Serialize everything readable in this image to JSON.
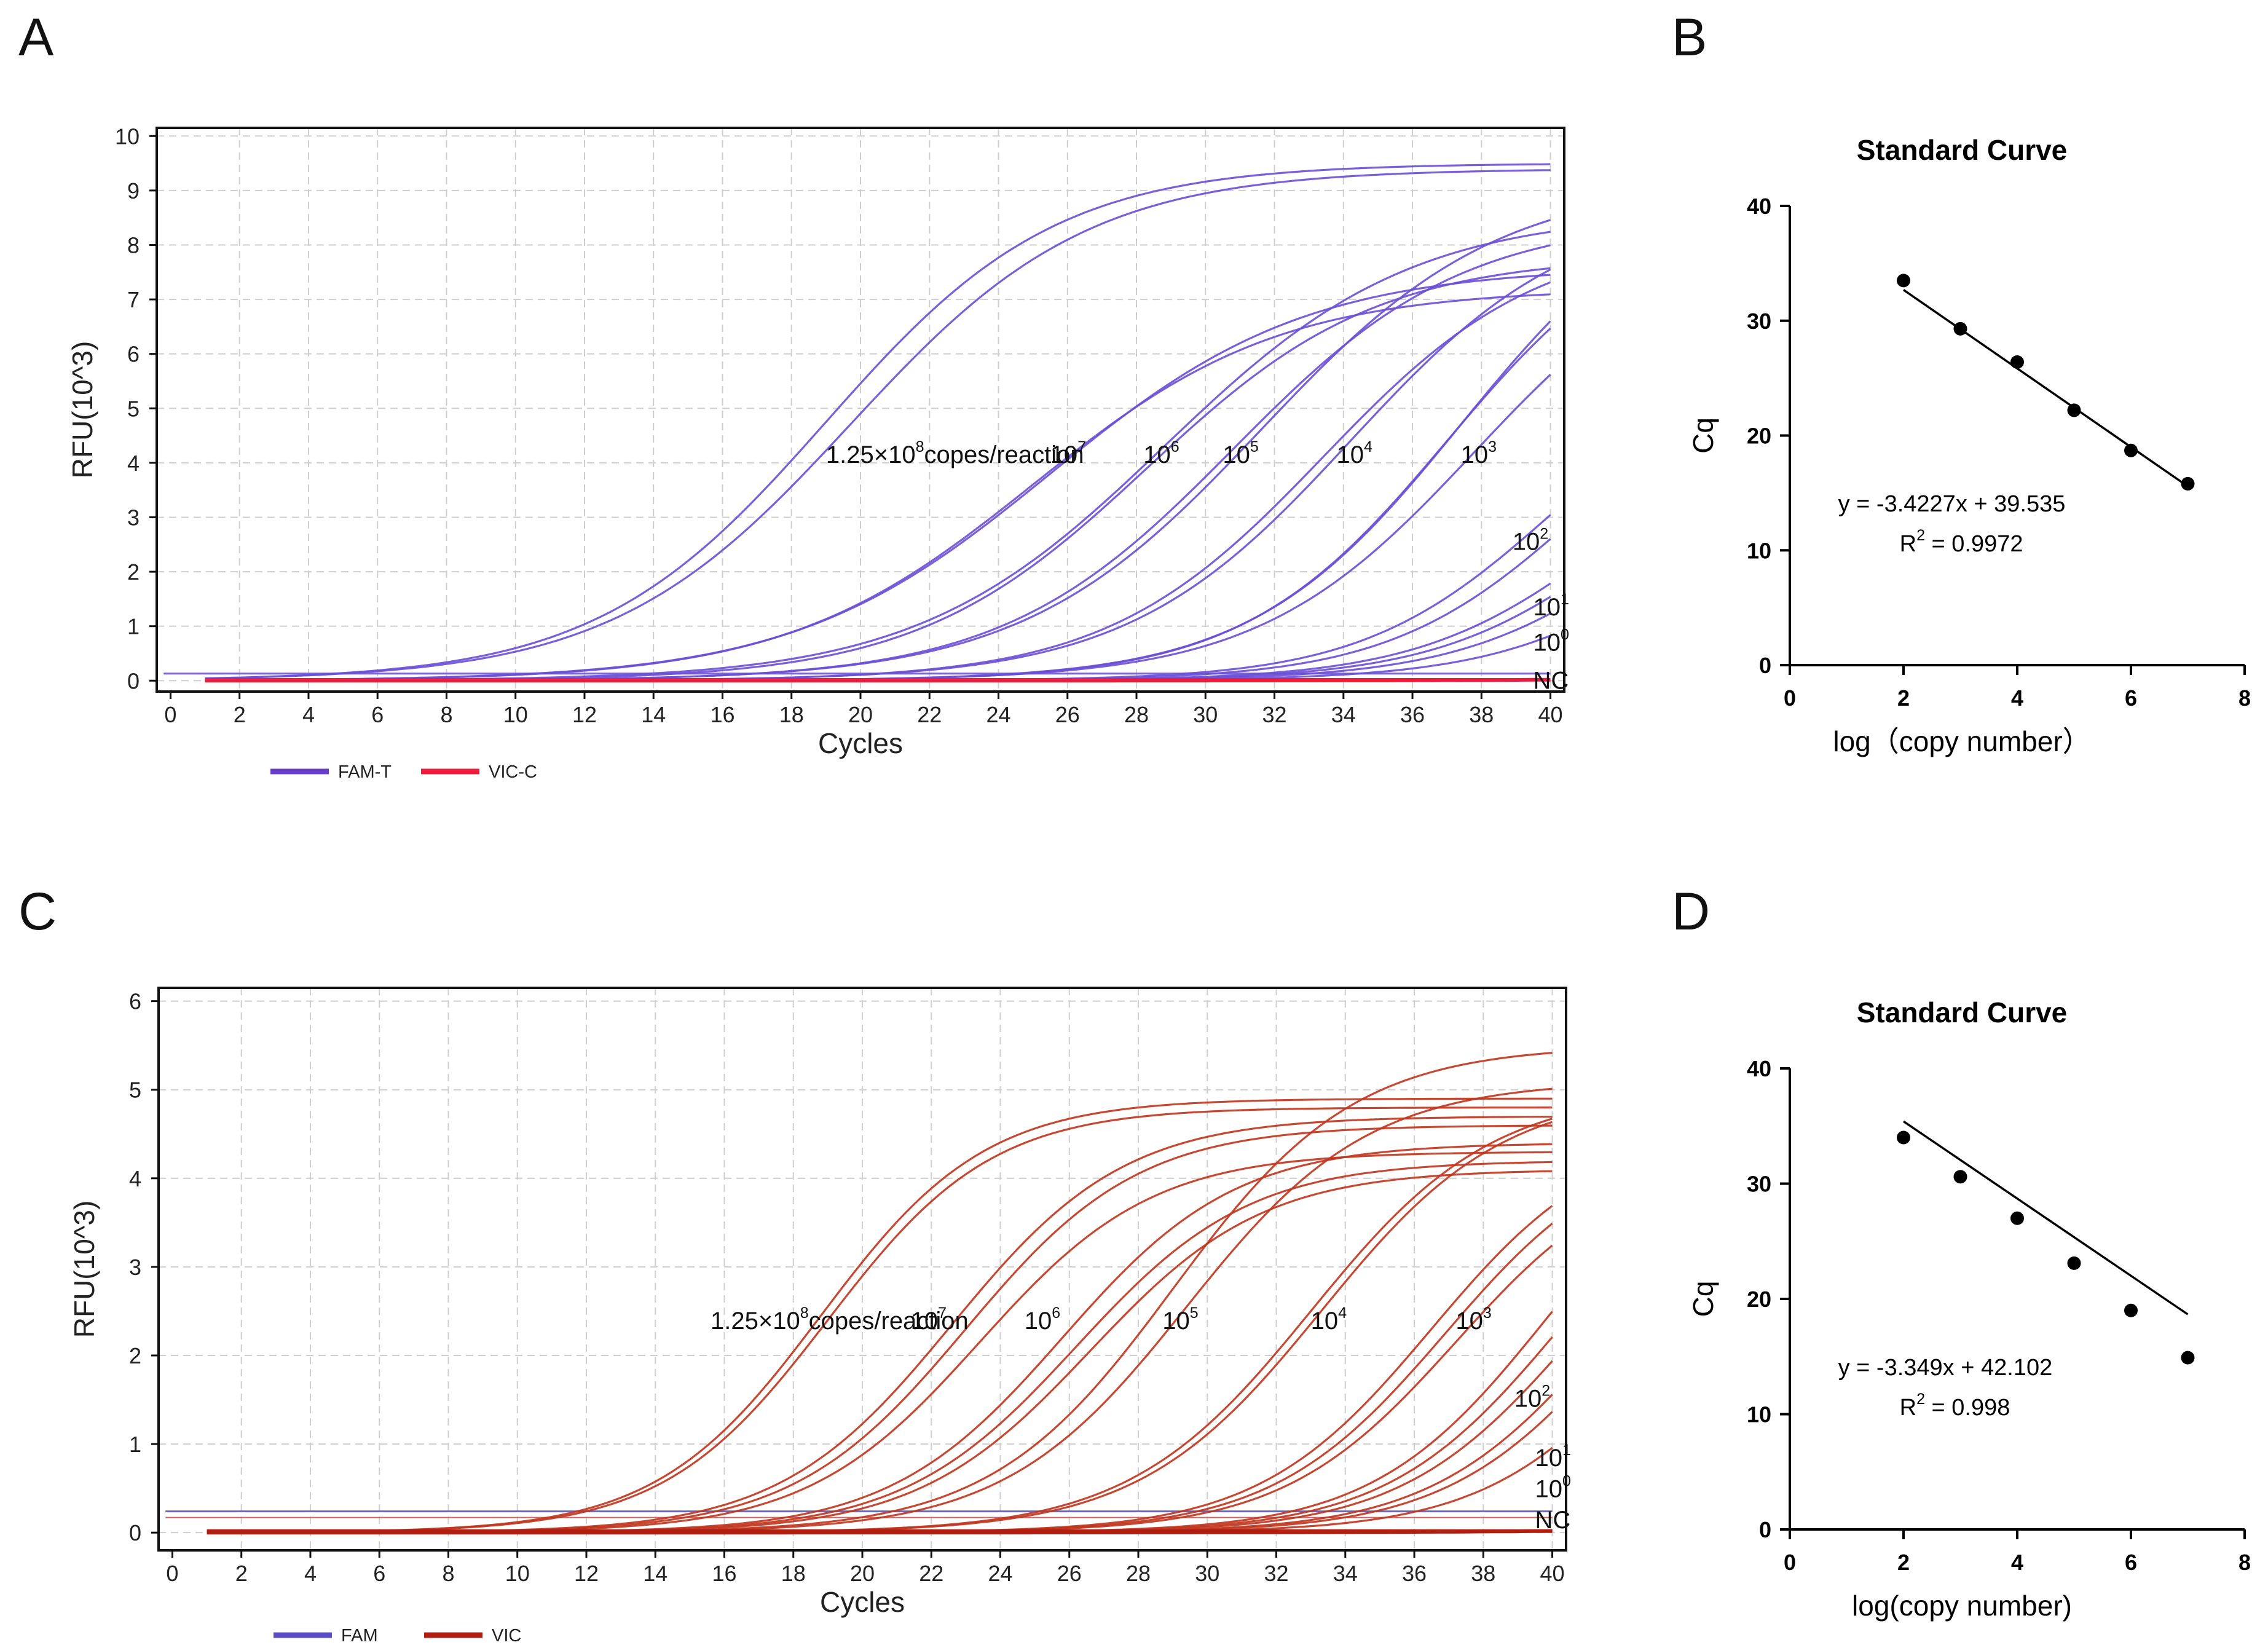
{
  "chart_data": [
    {
      "id": "A",
      "type": "line",
      "panel_letter": "A",
      "xlabel": "Cycles",
      "ylabel": "RFU(10^3)",
      "xlim": [
        0,
        40
      ],
      "ylim": [
        0,
        10
      ],
      "xticks": [
        0,
        2,
        4,
        6,
        8,
        10,
        12,
        14,
        16,
        18,
        20,
        22,
        24,
        26,
        28,
        30,
        32,
        34,
        36,
        38,
        40
      ],
      "yticks": [
        0,
        1,
        2,
        3,
        4,
        5,
        6,
        7,
        8,
        9,
        10
      ],
      "grid": true,
      "legend": [
        {
          "name": "FAM-T",
          "color": "#6a3dc9"
        },
        {
          "name": "VIC-C",
          "color": "#ee1b3c"
        }
      ],
      "threshold": 0.13,
      "curve_color": "#6a4fd6",
      "nc_color": "#ee1b3c",
      "series": [
        {
          "name": "1.25×10^8",
          "curves": [
            {
              "ct": 19.0,
              "plateau": 9.5,
              "k": 0.3
            },
            {
              "ct": 19.7,
              "plateau": 9.4,
              "k": 0.29
            }
          ]
        },
        {
          "name": "10^7",
          "curves": [
            {
              "ct": 25.0,
              "plateau": 7.2,
              "k": 0.28
            },
            {
              "ct": 25.5,
              "plateau": 7.6,
              "k": 0.27
            }
          ]
        },
        {
          "name": "10^6",
          "curves": [
            {
              "ct": 28.3,
              "plateau": 7.8,
              "k": 0.3
            },
            {
              "ct": 28.8,
              "plateau": 8.6,
              "k": 0.28
            }
          ]
        },
        {
          "name": "10^5",
          "curves": [
            {
              "ct": 30.8,
              "plateau": 8.5,
              "k": 0.3
            },
            {
              "ct": 31.6,
              "plateau": 9.2,
              "k": 0.29
            }
          ]
        },
        {
          "name": "10^4",
          "curves": [
            {
              "ct": 33.4,
              "plateau": 8.2,
              "k": 0.32
            },
            {
              "ct": 34.2,
              "plateau": 8.8,
              "k": 0.31
            }
          ]
        },
        {
          "name": "10^3",
          "curves": [
            {
              "ct": 37.0,
              "plateau": 8.8,
              "k": 0.34
            },
            {
              "ct": 37.4,
              "plateau": 9.4,
              "k": 0.33
            },
            {
              "ct": 37.8,
              "plateau": 8.4,
              "k": 0.32
            }
          ]
        },
        {
          "name": "10^2",
          "curves": [
            {
              "ct": 40.1,
              "plateau": 6.2,
              "k": 0.36
            },
            {
              "ct": 40.9,
              "plateau": 6.2,
              "k": 0.36
            }
          ]
        },
        {
          "name": "10^1",
          "curves": [
            {
              "ct": 41.8,
              "plateau": 5.2,
              "k": 0.36
            },
            {
              "ct": 42.4,
              "plateau": 5.2,
              "k": 0.36
            },
            {
              "ct": 43.1,
              "plateau": 5.0,
              "k": 0.36
            }
          ]
        },
        {
          "name": "10^0",
          "curves": [
            {
              "ct": 44.5,
              "plateau": 5.0,
              "k": 0.36
            }
          ]
        },
        {
          "name": "NC",
          "curves": [
            {
              "ct": 60,
              "plateau": 1.0,
              "k": 0.2
            }
          ]
        }
      ],
      "labels": [
        {
          "base": "1.25×10",
          "exp": "8",
          "rest": "copes/reaction",
          "x": 19.0,
          "y": 4.0
        },
        {
          "base": "10",
          "exp": "7",
          "rest": "",
          "x": 25.5,
          "y": 4.0
        },
        {
          "base": "10",
          "exp": "6",
          "rest": "",
          "x": 28.2,
          "y": 4.0
        },
        {
          "base": "10",
          "exp": "5",
          "rest": "",
          "x": 30.5,
          "y": 4.0
        },
        {
          "base": "10",
          "exp": "4",
          "rest": "",
          "x": 33.8,
          "y": 4.0
        },
        {
          "base": "10",
          "exp": "3",
          "rest": "",
          "x": 37.4,
          "y": 4.0
        },
        {
          "base": "10",
          "exp": "2",
          "rest": "",
          "x": 38.9,
          "y": 2.4
        },
        {
          "base": "10",
          "exp": "1",
          "rest": "",
          "x": 39.5,
          "y": 1.2
        },
        {
          "base": "10",
          "exp": "0",
          "rest": "",
          "x": 39.5,
          "y": 0.55
        },
        {
          "base": "NC",
          "exp": "",
          "rest": "",
          "x": 39.5,
          "y": -0.15
        }
      ]
    },
    {
      "id": "B",
      "type": "scatter",
      "panel_letter": "B",
      "title": "Standard Curve",
      "xlabel": "log（copy number）",
      "ylabel": "Cq",
      "xlim": [
        0,
        8
      ],
      "ylim": [
        0,
        40
      ],
      "xticks": [
        0,
        2,
        4,
        6,
        8
      ],
      "yticks": [
        0,
        10,
        20,
        30,
        40
      ],
      "x": [
        2,
        3,
        4,
        5,
        6,
        7
      ],
      "y": [
        33.5,
        29.3,
        26.4,
        22.2,
        18.7,
        15.8
      ],
      "fit": {
        "slope": -3.4227,
        "intercept": 39.535
      },
      "equation": "y = -3.4227x + 39.535",
      "r2_label": "R",
      "r2_exp": "2",
      "r2_value": " = 0.9972"
    },
    {
      "id": "C",
      "type": "line",
      "panel_letter": "C",
      "xlabel": "Cycles",
      "ylabel": "RFU(10^3)",
      "xlim": [
        0,
        40
      ],
      "ylim": [
        0,
        6
      ],
      "xticks": [
        0,
        2,
        4,
        6,
        8,
        10,
        12,
        14,
        16,
        18,
        20,
        22,
        24,
        26,
        28,
        30,
        32,
        34,
        36,
        38,
        40
      ],
      "yticks": [
        0,
        1,
        2,
        3,
        4,
        5,
        6
      ],
      "grid": true,
      "legend": [
        {
          "name": "FAM",
          "color": "#5a4cc4"
        },
        {
          "name": "VIC",
          "color": "#b01e10"
        }
      ],
      "threshold": 0.24,
      "threshold2": 0.17,
      "curve_color": "#c0341d",
      "nc_color": "#b01e10",
      "series": [
        {
          "name": "1.25×10^8",
          "curves": [
            {
              "ct": 18.8,
              "plateau": 4.9,
              "k": 0.42
            },
            {
              "ct": 19.0,
              "plateau": 4.8,
              "k": 0.42
            }
          ]
        },
        {
          "name": "10^7",
          "curves": [
            {
              "ct": 22.6,
              "plateau": 4.7,
              "k": 0.4
            },
            {
              "ct": 23.0,
              "plateau": 4.6,
              "k": 0.4
            },
            {
              "ct": 23.4,
              "plateau": 4.3,
              "k": 0.4
            }
          ]
        },
        {
          "name": "10^6",
          "curves": [
            {
              "ct": 25.8,
              "plateau": 4.4,
              "k": 0.4
            },
            {
              "ct": 26.2,
              "plateau": 4.2,
              "k": 0.4
            },
            {
              "ct": 26.6,
              "plateau": 4.1,
              "k": 0.4
            }
          ]
        },
        {
          "name": "10^5",
          "curves": [
            {
              "ct": 29.0,
              "plateau": 5.5,
              "k": 0.38
            },
            {
              "ct": 29.4,
              "plateau": 5.1,
              "k": 0.38
            }
          ]
        },
        {
          "name": "10^4",
          "curves": [
            {
              "ct": 33.0,
              "plateau": 5.0,
              "k": 0.38
            },
            {
              "ct": 33.3,
              "plateau": 5.0,
              "k": 0.38
            }
          ]
        },
        {
          "name": "10^3",
          "curves": [
            {
              "ct": 36.5,
              "plateau": 4.6,
              "k": 0.4
            },
            {
              "ct": 36.9,
              "plateau": 4.5,
              "k": 0.4
            },
            {
              "ct": 37.2,
              "plateau": 4.3,
              "k": 0.4
            }
          ]
        },
        {
          "name": "10^2",
          "curves": [
            {
              "ct": 39.8,
              "plateau": 4.8,
              "k": 0.4
            },
            {
              "ct": 40.2,
              "plateau": 4.6,
              "k": 0.4
            },
            {
              "ct": 40.6,
              "plateau": 4.4,
              "k": 0.4
            }
          ]
        },
        {
          "name": "10^1",
          "curves": [
            {
              "ct": 41.5,
              "plateau": 4.4,
              "k": 0.4
            },
            {
              "ct": 42.0,
              "plateau": 4.4,
              "k": 0.4
            }
          ]
        },
        {
          "name": "10^0",
          "curves": [
            {
              "ct": 43.2,
              "plateau": 4.4,
              "k": 0.4
            }
          ]
        },
        {
          "name": "NC",
          "curves": [
            {
              "ct": 60,
              "plateau": 1.0,
              "k": 0.2
            }
          ]
        }
      ],
      "labels": [
        {
          "base": "1.25×10",
          "exp": "8",
          "rest": "copes/reaction",
          "x": 15.6,
          "y": 2.3
        },
        {
          "base": "10",
          "exp": "7",
          "rest": "",
          "x": 21.4,
          "y": 2.3
        },
        {
          "base": "10",
          "exp": "6",
          "rest": "",
          "x": 24.7,
          "y": 2.3
        },
        {
          "base": "10",
          "exp": "5",
          "rest": "",
          "x": 28.7,
          "y": 2.3
        },
        {
          "base": "10",
          "exp": "4",
          "rest": "",
          "x": 33.0,
          "y": 2.3
        },
        {
          "base": "10",
          "exp": "3",
          "rest": "",
          "x": 37.2,
          "y": 2.3
        },
        {
          "base": "10",
          "exp": "2",
          "rest": "",
          "x": 38.9,
          "y": 1.42
        },
        {
          "base": "10",
          "exp": "1",
          "rest": "",
          "x": 39.5,
          "y": 0.75
        },
        {
          "base": "10",
          "exp": "0",
          "rest": "",
          "x": 39.5,
          "y": 0.4
        },
        {
          "base": "NC",
          "exp": "",
          "rest": "",
          "x": 39.5,
          "y": 0.05
        }
      ]
    },
    {
      "id": "D",
      "type": "scatter",
      "panel_letter": "D",
      "title": "Standard Curve",
      "xlabel": "log(copy number)",
      "ylabel": "Cq",
      "xlim": [
        0,
        8
      ],
      "ylim": [
        0,
        40
      ],
      "xticks": [
        0,
        2,
        4,
        6,
        8
      ],
      "yticks": [
        0,
        10,
        20,
        30,
        40
      ],
      "x": [
        2,
        3,
        4,
        5,
        6,
        7
      ],
      "y": [
        34.0,
        30.6,
        27.0,
        23.1,
        19.0,
        14.9
      ],
      "fit": {
        "slope": -3.349,
        "intercept": 42.102
      },
      "equation": "y = -3.349x + 42.102",
      "r2_label": "R",
      "r2_exp": "2",
      "r2_value": " = 0.998"
    }
  ]
}
